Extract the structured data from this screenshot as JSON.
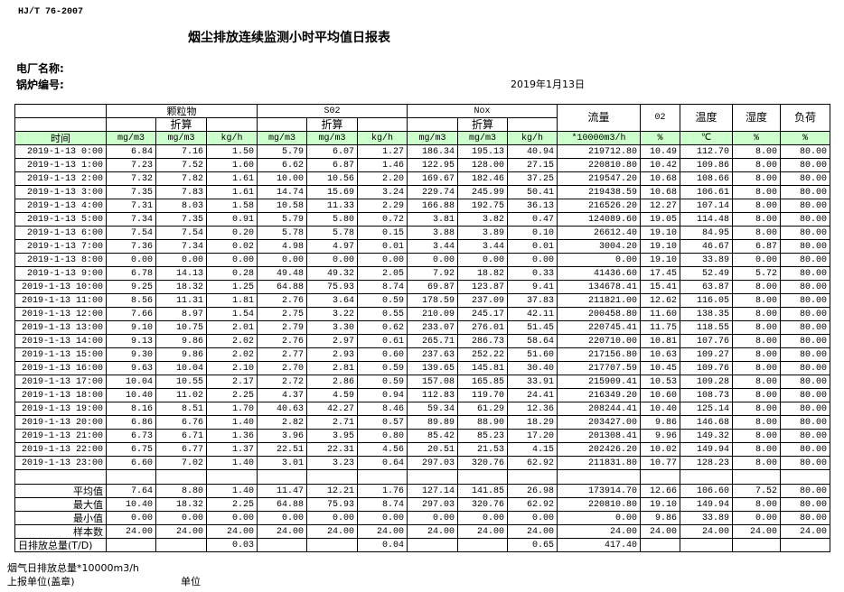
{
  "standard": "HJ/T  76-2007",
  "title": "烟尘排放连续监测小时平均值日报表",
  "plant_label": "电厂名称:",
  "boiler_label": "锅炉编号:",
  "date": "2019年1月13日",
  "header": {
    "particulate": "颗粒物",
    "so2": "S02",
    "nox": "Nox",
    "converted": "折算",
    "flow": "流量",
    "o2": "02",
    "temp": "温度",
    "humidity": "湿度",
    "load": "负荷",
    "time": "时间",
    "units": [
      "mg/m3",
      "mg/m3",
      "kg/h",
      "mg/m3",
      "mg/m3",
      "kg/h",
      "mg/m3",
      "mg/m3",
      "kg/h",
      "*10000m3/h",
      "%",
      "℃",
      "%",
      "%"
    ]
  },
  "rows": [
    [
      "2019-1-13 0:00",
      "6.84",
      "7.16",
      "1.50",
      "5.79",
      "6.07",
      "1.27",
      "186.34",
      "195.13",
      "40.94",
      "219712.80",
      "10.49",
      "112.70",
      "8.00",
      "80.00"
    ],
    [
      "2019-1-13 1:00",
      "7.23",
      "7.52",
      "1.60",
      "6.62",
      "6.87",
      "1.46",
      "122.95",
      "128.00",
      "27.15",
      "220810.80",
      "10.42",
      "109.86",
      "8.00",
      "80.00"
    ],
    [
      "2019-1-13 2:00",
      "7.32",
      "7.82",
      "1.61",
      "10.00",
      "10.56",
      "2.20",
      "169.67",
      "182.46",
      "37.25",
      "219547.20",
      "10.68",
      "108.66",
      "8.00",
      "80.00"
    ],
    [
      "2019-1-13 3:00",
      "7.35",
      "7.83",
      "1.61",
      "14.74",
      "15.69",
      "3.24",
      "229.74",
      "245.99",
      "50.41",
      "219438.59",
      "10.68",
      "106.61",
      "8.00",
      "80.00"
    ],
    [
      "2019-1-13 4:00",
      "7.31",
      "8.03",
      "1.58",
      "10.58",
      "11.33",
      "2.29",
      "166.88",
      "192.75",
      "36.13",
      "216526.20",
      "12.27",
      "107.14",
      "8.00",
      "80.00"
    ],
    [
      "2019-1-13 5:00",
      "7.34",
      "7.35",
      "0.91",
      "5.79",
      "5.80",
      "0.72",
      "3.81",
      "3.82",
      "0.47",
      "124089.60",
      "19.05",
      "114.48",
      "8.00",
      "80.00"
    ],
    [
      "2019-1-13 6:00",
      "7.54",
      "7.54",
      "0.20",
      "5.78",
      "5.78",
      "0.15",
      "3.88",
      "3.89",
      "0.10",
      "26612.40",
      "19.10",
      "84.95",
      "8.00",
      "80.00"
    ],
    [
      "2019-1-13 7:00",
      "7.36",
      "7.34",
      "0.02",
      "4.98",
      "4.97",
      "0.01",
      "3.44",
      "3.44",
      "0.01",
      "3004.20",
      "19.10",
      "46.67",
      "6.87",
      "80.00"
    ],
    [
      "2019-1-13 8:00",
      "0.00",
      "0.00",
      "0.00",
      "0.00",
      "0.00",
      "0.00",
      "0.00",
      "0.00",
      "0.00",
      "0.00",
      "19.10",
      "33.89",
      "0.00",
      "80.00"
    ],
    [
      "2019-1-13 9:00",
      "6.78",
      "14.13",
      "0.28",
      "49.48",
      "49.32",
      "2.05",
      "7.92",
      "18.82",
      "0.33",
      "41436.60",
      "17.45",
      "52.49",
      "5.72",
      "80.00"
    ],
    [
      "2019-1-13 10:00",
      "9.25",
      "18.32",
      "1.25",
      "64.88",
      "75.93",
      "8.74",
      "69.87",
      "123.87",
      "9.41",
      "134678.41",
      "15.41",
      "63.87",
      "8.00",
      "80.00"
    ],
    [
      "2019-1-13 11:00",
      "8.56",
      "11.31",
      "1.81",
      "2.76",
      "3.64",
      "0.59",
      "178.59",
      "237.09",
      "37.83",
      "211821.00",
      "12.62",
      "116.05",
      "8.00",
      "80.00"
    ],
    [
      "2019-1-13 12:00",
      "7.66",
      "8.97",
      "1.54",
      "2.75",
      "3.22",
      "0.55",
      "210.09",
      "245.17",
      "42.11",
      "200458.80",
      "11.60",
      "138.35",
      "8.00",
      "80.00"
    ],
    [
      "2019-1-13 13:00",
      "9.10",
      "10.75",
      "2.01",
      "2.79",
      "3.30",
      "0.62",
      "233.07",
      "276.01",
      "51.45",
      "220745.41",
      "11.75",
      "118.55",
      "8.00",
      "80.00"
    ],
    [
      "2019-1-13 14:00",
      "9.13",
      "9.86",
      "2.02",
      "2.76",
      "2.97",
      "0.61",
      "265.71",
      "286.73",
      "58.64",
      "220710.00",
      "10.81",
      "107.76",
      "8.00",
      "80.00"
    ],
    [
      "2019-1-13 15:00",
      "9.30",
      "9.86",
      "2.02",
      "2.77",
      "2.93",
      "0.60",
      "237.63",
      "252.22",
      "51.60",
      "217156.80",
      "10.63",
      "109.27",
      "8.00",
      "80.00"
    ],
    [
      "2019-1-13 16:00",
      "9.63",
      "10.04",
      "2.10",
      "2.70",
      "2.81",
      "0.59",
      "139.65",
      "145.81",
      "30.40",
      "217707.59",
      "10.45",
      "109.76",
      "8.00",
      "80.00"
    ],
    [
      "2019-1-13 17:00",
      "10.04",
      "10.55",
      "2.17",
      "2.72",
      "2.86",
      "0.59",
      "157.08",
      "165.85",
      "33.91",
      "215909.41",
      "10.53",
      "109.28",
      "8.00",
      "80.00"
    ],
    [
      "2019-1-13 18:00",
      "10.40",
      "11.02",
      "2.25",
      "4.37",
      "4.59",
      "0.94",
      "112.83",
      "119.70",
      "24.41",
      "216349.20",
      "10.60",
      "108.73",
      "8.00",
      "80.00"
    ],
    [
      "2019-1-13 19:00",
      "8.16",
      "8.51",
      "1.70",
      "40.63",
      "42.27",
      "8.46",
      "59.34",
      "61.29",
      "12.36",
      "208244.41",
      "10.40",
      "125.14",
      "8.00",
      "80.00"
    ],
    [
      "2019-1-13 20:00",
      "6.86",
      "6.76",
      "1.40",
      "2.82",
      "2.71",
      "0.57",
      "89.89",
      "88.90",
      "18.29",
      "203427.00",
      "9.86",
      "146.68",
      "8.00",
      "80.00"
    ],
    [
      "2019-1-13 21:00",
      "6.73",
      "6.71",
      "1.36",
      "3.96",
      "3.95",
      "0.80",
      "85.42",
      "85.23",
      "17.20",
      "201308.41",
      "9.96",
      "149.32",
      "8.00",
      "80.00"
    ],
    [
      "2019-1-13 22:00",
      "6.75",
      "6.77",
      "1.37",
      "22.51",
      "22.31",
      "4.56",
      "20.51",
      "21.53",
      "4.15",
      "202426.20",
      "10.02",
      "149.94",
      "8.00",
      "80.00"
    ],
    [
      "2019-1-13 23:00",
      "6.60",
      "7.02",
      "1.40",
      "3.01",
      "3.23",
      "0.64",
      "297.03",
      "320.76",
      "62.92",
      "211831.80",
      "10.77",
      "128.23",
      "8.00",
      "80.00"
    ]
  ],
  "stats": [
    [
      "平均值",
      "7.64",
      "8.80",
      "1.40",
      "11.47",
      "12.21",
      "1.76",
      "127.14",
      "141.85",
      "26.98",
      "173914.70",
      "12.66",
      "106.60",
      "7.52",
      "80.00"
    ],
    [
      "最大值",
      "10.40",
      "18.32",
      "2.25",
      "64.88",
      "75.93",
      "8.74",
      "297.03",
      "320.76",
      "62.92",
      "220810.80",
      "19.10",
      "149.94",
      "8.00",
      "80.00"
    ],
    [
      "最小值",
      "0.00",
      "0.00",
      "0.00",
      "0.00",
      "0.00",
      "0.00",
      "0.00",
      "0.00",
      "0.00",
      "0.00",
      "9.86",
      "33.89",
      "0.00",
      "80.00"
    ],
    [
      "样本数",
      "24.00",
      "24.00",
      "24.00",
      "24.00",
      "24.00",
      "24.00",
      "24.00",
      "24.00",
      "24.00",
      "24.00",
      "24.00",
      "24.00",
      "24.00",
      "24.00"
    ],
    [
      "日排放总量(T/D)",
      "",
      "",
      "0.03",
      "",
      "",
      "0.04",
      "",
      "",
      "0.65",
      "417.40",
      "",
      "",
      "",
      ""
    ]
  ],
  "footer": {
    "note": "烟气日排放总量*10000m3/h",
    "reporter": "上报单位(盖章)",
    "unit": "单位"
  }
}
